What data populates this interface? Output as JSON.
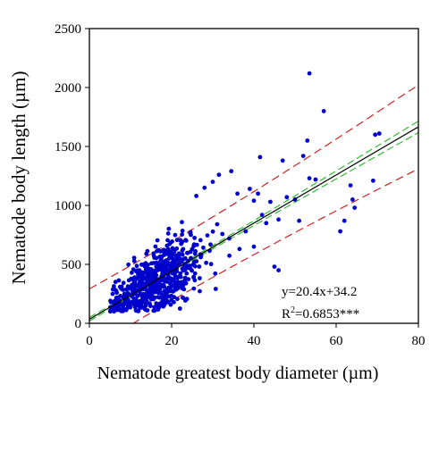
{
  "chart_data": {
    "type": "scatter",
    "xlabel": "Nematode greatest body diameter  (µm)",
    "ylabel": "Nematode body length (µm)",
    "xlim": [
      0,
      80
    ],
    "ylim": [
      0,
      2500
    ],
    "xticks": [
      0,
      20,
      40,
      60,
      80
    ],
    "yticks": [
      0,
      500,
      1000,
      1500,
      2000,
      2500
    ],
    "grid": false,
    "point_color": "#0000cc",
    "fit": {
      "slope": 20.4,
      "intercept": 34.2,
      "equation": "y=20.4x+34.2",
      "r2_prefix": "R",
      "r2_sup": "2",
      "r2_value": "=0.6853***",
      "line_color": "#000000",
      "confidence_band_color": "#33bb33",
      "prediction_band_color": "#cc2222"
    },
    "outliers": [
      [
        53.5,
        2120
      ],
      [
        57,
        1800
      ],
      [
        53,
        1550
      ],
      [
        70.5,
        1610
      ],
      [
        69.5,
        1600
      ],
      [
        47,
        1380
      ],
      [
        52,
        1420
      ],
      [
        41.5,
        1410
      ],
      [
        34.5,
        1290
      ],
      [
        53.5,
        1230
      ],
      [
        55,
        1220
      ],
      [
        48,
        1070
      ],
      [
        50,
        1050
      ],
      [
        63.5,
        1170
      ],
      [
        64,
        1050
      ],
      [
        64.5,
        980
      ],
      [
        62,
        870
      ],
      [
        61,
        780
      ],
      [
        69,
        1210
      ],
      [
        51,
        870
      ],
      [
        43,
        850
      ],
      [
        46,
        880
      ],
      [
        44,
        1030
      ],
      [
        41,
        1100
      ],
      [
        39,
        1140
      ],
      [
        36,
        1100
      ],
      [
        40,
        1040
      ],
      [
        30,
        1200
      ],
      [
        31.5,
        1260
      ],
      [
        28,
        1150
      ],
      [
        26,
        1080
      ],
      [
        42,
        920
      ],
      [
        38,
        780
      ],
      [
        34,
        720
      ],
      [
        45,
        480
      ],
      [
        46,
        450
      ],
      [
        40,
        650
      ],
      [
        36.5,
        630
      ]
    ],
    "cluster": {
      "count": 650,
      "x_center": 16,
      "x_spread": 5,
      "x_min": 5,
      "x_max": 38,
      "y_residual_spread": 105,
      "y_min": 100
    }
  }
}
